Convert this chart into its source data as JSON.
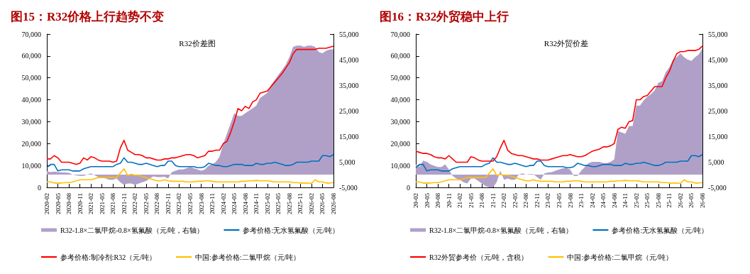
{
  "chart_data": [
    {
      "type": "line",
      "title": "图15：R32价格上行趋势不变",
      "subtitle": "R32价差图",
      "categories": [
        "2020-02",
        null,
        null,
        "2020-05",
        null,
        null,
        "2020-08",
        null,
        null,
        "2020-11",
        null,
        null,
        "2021-02",
        null,
        null,
        "2021-05",
        null,
        null,
        "2021-08",
        null,
        null,
        "2021-11",
        null,
        null,
        "2022-02",
        null,
        null,
        "2022-05",
        null,
        null,
        "2022-08",
        null,
        null,
        "2022-11",
        null,
        null,
        "2023-02",
        null,
        null,
        "2023-05",
        null,
        null,
        "2023-08",
        null,
        null,
        "2023-11",
        null,
        null,
        "2024-02",
        null,
        null,
        "2024-05",
        null,
        null,
        "2024-08",
        null,
        null,
        "2024-11",
        null,
        null,
        "2025-02",
        null,
        null,
        "2025-05",
        null,
        null,
        "2025-08",
        null,
        null,
        "2025-11",
        null,
        null,
        "2026-02",
        null,
        null,
        "2026-05",
        null,
        null,
        "2026-08"
      ],
      "series": [
        {
          "name": "R32-1.8×二氯甲烷-0.8×氢氟酸（元/吨，右轴）",
          "type": "area",
          "axis": "y2",
          "color": "#b0a0c8",
          "values": [
            1400,
            1000,
            1200,
            1000,
            900,
            800,
            700,
            0,
            -300,
            -500,
            -500,
            0,
            500,
            -200,
            -1000,
            -1200,
            -1500,
            -2000,
            -2000,
            -1500,
            -3000,
            -4000,
            -3500,
            -3500,
            -4000,
            -3500,
            -3000,
            -2500,
            -1500,
            -700,
            -1000,
            -1000,
            -800,
            -1500,
            1000,
            1500,
            2000,
            2000,
            2500,
            3000,
            2500,
            2000,
            1500,
            2000,
            3500,
            4000,
            5000,
            7000,
            12000,
            16000,
            20000,
            24000,
            23000,
            23000,
            24000,
            25000,
            26000,
            27000,
            30000,
            31000,
            32000,
            35000,
            37000,
            39000,
            41000,
            43000,
            46000,
            50000,
            50500,
            50500,
            50000,
            50500,
            50500,
            50000,
            48000,
            47500,
            48500,
            49000,
            49000
          ]
        },
        {
          "name": "参考价格:无水氢氟酸（元/吨）",
          "color": "#0070c0",
          "values": [
            9000,
            10500,
            10500,
            7500,
            8000,
            8000,
            8000,
            7500,
            7500,
            7500,
            8500,
            9000,
            9500,
            9500,
            9500,
            9500,
            9500,
            9500,
            9500,
            10500,
            11000,
            13500,
            11500,
            11500,
            11000,
            10500,
            10500,
            11000,
            10500,
            10000,
            9500,
            10000,
            10000,
            12000,
            12000,
            10000,
            9500,
            9500,
            9500,
            9500,
            9500,
            9000,
            9000,
            9500,
            11000,
            10500,
            10000,
            10000,
            9500,
            9500,
            10000,
            10500,
            10500,
            10500,
            10000,
            10000,
            10000,
            11000,
            10500,
            10500,
            11000,
            11000,
            11500,
            11000,
            10500,
            10000,
            10000,
            10500,
            11500,
            11500,
            11500,
            11500,
            12000,
            12000,
            12000,
            14500,
            14500,
            14000,
            15000
          ]
        },
        {
          "name": "参考价格:制冷剂:R32（元/吨）",
          "color": "#ff0000",
          "values": [
            13000,
            13000,
            14500,
            13500,
            11500,
            11500,
            11500,
            11000,
            10500,
            11000,
            13500,
            12500,
            14000,
            13500,
            12500,
            12000,
            12000,
            12000,
            11500,
            12000,
            18000,
            21500,
            17000,
            16000,
            15000,
            15000,
            14500,
            13500,
            13500,
            13000,
            12500,
            12500,
            13000,
            13000,
            13500,
            13500,
            14000,
            14500,
            15000,
            15000,
            14500,
            13500,
            14000,
            14500,
            16500,
            16500,
            17000,
            17000,
            20000,
            21000,
            25000,
            30000,
            36000,
            35000,
            37000,
            36000,
            39000,
            40000,
            43000,
            43500,
            44000,
            46000,
            48000,
            50000,
            52000,
            54500,
            57000,
            61000,
            63000,
            63000,
            63000,
            63000,
            63000,
            63000,
            63500,
            63500,
            63500,
            64000,
            64500
          ]
        },
        {
          "name": "中国:参考价格:二氯甲烷（元/吨）",
          "color": "#ffc000",
          "values": [
            2500,
            2500,
            2000,
            2000,
            2000,
            2200,
            2200,
            2500,
            3000,
            3500,
            3500,
            3500,
            3500,
            4000,
            4500,
            4500,
            4500,
            4500,
            4500,
            4500,
            6500,
            8500,
            5500,
            6000,
            5500,
            5500,
            5000,
            4500,
            4000,
            3500,
            3000,
            3000,
            3500,
            3000,
            2800,
            2800,
            2800,
            2800,
            2500,
            2500,
            2500,
            2800,
            2800,
            3000,
            3000,
            2800,
            2500,
            2500,
            2500,
            2500,
            2500,
            2500,
            2500,
            2800,
            2800,
            3000,
            3000,
            3200,
            3000,
            3000,
            3000,
            2800,
            2500,
            2500,
            2500,
            2500,
            2500,
            2200,
            2200,
            2000,
            2000,
            2000,
            1800,
            3500,
            2500,
            2500,
            2000,
            2000,
            2200
          ]
        }
      ],
      "ylim": [
        0,
        70000
      ],
      "yticks": [
        {
          "value": 0,
          "label": "0"
        },
        {
          "value": 10000,
          "label": "10,000"
        },
        {
          "value": 20000,
          "label": "20,000"
        },
        {
          "value": 30000,
          "label": "30,000"
        },
        {
          "value": 40000,
          "label": "40,000"
        },
        {
          "value": 50000,
          "label": "50,000"
        },
        {
          "value": 60000,
          "label": "60,000"
        },
        {
          "value": 70000,
          "label": "70,000"
        }
      ],
      "y2lim": [
        -5000,
        55000
      ],
      "y2ticks": [
        {
          "value": -5000,
          "label": "-5,000"
        },
        {
          "value": 5000,
          "label": "5,000"
        },
        {
          "value": 15000,
          "label": "15,000"
        },
        {
          "value": 25000,
          "label": "25,000"
        },
        {
          "value": 35000,
          "label": "35,000"
        },
        {
          "value": 45000,
          "label": "45,000"
        },
        {
          "value": 55000,
          "label": "55,000"
        }
      ],
      "legend": "bottom",
      "grid": false,
      "marker": "none",
      "line_style": "solid"
    },
    {
      "type": "line",
      "title": "图16：R32外贸稳中上行",
      "subtitle": "R32外贸价差",
      "categories": [
        "20-02",
        null,
        null,
        "20-05",
        null,
        null,
        "20-08",
        null,
        null,
        "20-11",
        null,
        null,
        "21-02",
        null,
        null,
        "21-05",
        null,
        null,
        "21-08",
        null,
        null,
        "21-11",
        null,
        null,
        "22-02",
        null,
        null,
        "22-05",
        null,
        null,
        "22-08",
        null,
        null,
        "22-11",
        null,
        null,
        "23-02",
        null,
        null,
        "23-05",
        null,
        null,
        "23-08",
        null,
        null,
        "23-11",
        null,
        null,
        "24-02",
        null,
        null,
        "24-05",
        null,
        null,
        "24-08",
        null,
        null,
        "24-11",
        null,
        null,
        "25-02",
        null,
        null,
        "25-05",
        null,
        null,
        "25-08",
        null,
        null,
        "25-11",
        null,
        null,
        "26-02",
        null,
        null,
        "26-05",
        null,
        null,
        "26-08"
      ],
      "series": [
        {
          "name": "R32-1.8×二氯甲烷-0.8×氢氟酸（元/吨，右轴）",
          "type": "area",
          "axis": "y2",
          "color": "#b0a0c8",
          "values": [
            4000,
            3000,
            5500,
            5000,
            4000,
            3500,
            3000,
            3000,
            4000,
            2000,
            -500,
            -1500,
            -2000,
            -3000,
            -3500,
            -1500,
            -1500,
            -2500,
            -3500,
            -4500,
            -5000,
            -5000,
            -3000,
            1500,
            -2000,
            -1500,
            -2000,
            -2000,
            0,
            500,
            0,
            200,
            200,
            -1000,
            -2000,
            500,
            800,
            1000,
            1500,
            2000,
            2500,
            2500,
            2000,
            -500,
            -500,
            1500,
            3000,
            4500,
            5000,
            5000,
            5000,
            4500,
            4500,
            5000,
            6000,
            17000,
            16500,
            16000,
            19000,
            19000,
            27000,
            27000,
            29000,
            30500,
            31500,
            33000,
            36000,
            36500,
            40000,
            42000,
            45000,
            46000,
            47500,
            46000,
            45000,
            44500,
            46000,
            47000,
            49500
          ]
        },
        {
          "name": "参考价格:无水氢氟酸（元/吨）",
          "color": "#0070c0",
          "values": [
            9000,
            10500,
            10500,
            7500,
            8000,
            8000,
            8000,
            7500,
            7500,
            7500,
            8500,
            9000,
            9500,
            9500,
            9500,
            9500,
            9500,
            9500,
            9500,
            10500,
            11000,
            13500,
            11500,
            11500,
            11000,
            10500,
            10500,
            11000,
            10500,
            10000,
            9500,
            10000,
            10000,
            12000,
            12000,
            10000,
            9500,
            9500,
            9500,
            9500,
            9500,
            9000,
            9000,
            9500,
            11000,
            10500,
            10000,
            10000,
            9500,
            9500,
            10000,
            10500,
            10500,
            10500,
            10000,
            10000,
            10000,
            11000,
            10500,
            10500,
            11000,
            11000,
            11500,
            11000,
            10500,
            10000,
            10000,
            10500,
            11500,
            11500,
            11500,
            11500,
            12000,
            12000,
            12000,
            14500,
            14500,
            14000,
            15000
          ]
        },
        {
          "name": "R32外贸参考价（元/吨，含税）",
          "color": "#ff0000",
          "values": [
            16500,
            16000,
            15500,
            15500,
            15000,
            14000,
            13500,
            13500,
            13000,
            14500,
            13000,
            11500,
            11500,
            11500,
            11500,
            14000,
            13500,
            12500,
            12000,
            12000,
            12000,
            12000,
            14000,
            18000,
            21500,
            17000,
            15500,
            15000,
            14500,
            14500,
            14000,
            13500,
            13000,
            13000,
            12500,
            12500,
            12500,
            13000,
            13500,
            14000,
            14500,
            14500,
            15000,
            14500,
            14000,
            14000,
            14500,
            15500,
            16500,
            17000,
            17500,
            18500,
            18500,
            19000,
            20000,
            26500,
            27500,
            27000,
            30000,
            30500,
            40000,
            40000,
            41500,
            42000,
            44000,
            46000,
            46000,
            46000,
            50000,
            53000,
            57500,
            61000,
            62000,
            62000,
            62500,
            62500,
            62500,
            63000,
            64500
          ]
        },
        {
          "name": "中国:参考价格:二氯甲烷（元/吨）",
          "color": "#ffc000",
          "values": [
            2500,
            2500,
            2000,
            2000,
            2000,
            2200,
            2200,
            2500,
            3000,
            3500,
            3500,
            3500,
            3500,
            4000,
            4500,
            4500,
            4500,
            4500,
            4500,
            4500,
            6500,
            8500,
            5500,
            6000,
            5500,
            5500,
            5000,
            4500,
            4000,
            3500,
            3000,
            3000,
            3500,
            3000,
            2800,
            2800,
            2800,
            2800,
            2500,
            2500,
            2500,
            2800,
            2800,
            3000,
            3000,
            2800,
            2500,
            2500,
            2500,
            2500,
            2500,
            2500,
            2500,
            2800,
            2800,
            3000,
            3000,
            3200,
            3000,
            3000,
            3000,
            2800,
            2500,
            2500,
            2500,
            2500,
            2500,
            2200,
            2200,
            2000,
            2000,
            2000,
            1800,
            3500,
            2500,
            2500,
            2000,
            2000,
            2200
          ]
        }
      ],
      "ylim": [
        0,
        70000
      ],
      "yticks": [
        {
          "value": 0,
          "label": "0"
        },
        {
          "value": 10000,
          "label": "10,000"
        },
        {
          "value": 20000,
          "label": "20,000"
        },
        {
          "value": 30000,
          "label": "30,000"
        },
        {
          "value": 40000,
          "label": "40,000"
        },
        {
          "value": 50000,
          "label": "50,000"
        },
        {
          "value": 60000,
          "label": "60,000"
        },
        {
          "value": 70000,
          "label": "70,000"
        }
      ],
      "y2lim": [
        -5000,
        55000
      ],
      "y2ticks": [
        {
          "value": -5000,
          "label": "-5,000"
        },
        {
          "value": 5000,
          "label": "5,000"
        },
        {
          "value": 15000,
          "label": "15,000"
        },
        {
          "value": 25000,
          "label": "25,000"
        },
        {
          "value": 35000,
          "label": "35,000"
        },
        {
          "value": 45000,
          "label": "45,000"
        },
        {
          "value": 55000,
          "label": "55,000"
        }
      ],
      "legend": "bottom",
      "grid": false,
      "marker": "none",
      "line_style": "solid"
    }
  ]
}
